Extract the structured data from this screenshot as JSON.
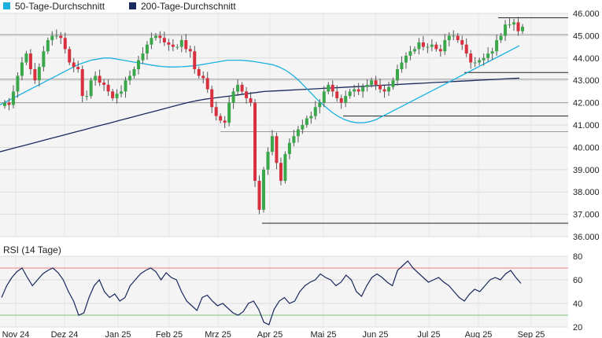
{
  "chart_data": [
    {
      "type": "candlestick",
      "legend": [
        {
          "name": "50-Tage-Durchschnitt",
          "color": "#1ab0e0"
        },
        {
          "name": "200-Tage-Durchschnitt",
          "color": "#1a2a5e"
        }
      ],
      "colors": {
        "up": "#3aa84a",
        "down": "#d9303f",
        "ma50": "#1ab0e0",
        "ma200": "#1a2a5e",
        "level_lines": "#222222",
        "background": "#f4f4f4"
      },
      "x_tick_labels": [
        "Nov 24",
        "Dez 24",
        "Jan 25",
        "Feb 25",
        "Mrz 25",
        "Apr 25",
        "Mai 25",
        "Jun 25",
        "Jul 25",
        "Aug 25",
        "Sep 25"
      ],
      "y_ticks": [
        "36.000",
        "37.000",
        "38.000",
        "39.000",
        "40.000",
        "41.000",
        "42.000",
        "43.000",
        "44.000",
        "45.000",
        "46.000"
      ],
      "ylim": [
        36000,
        46000
      ],
      "y_axis_position": "right",
      "grid": true,
      "close_series": [
        42000,
        41900,
        42500,
        43200,
        43800,
        44200,
        43500,
        43000,
        43600,
        44300,
        44800,
        45000,
        45000,
        44900,
        44400,
        43800,
        43600,
        43500,
        42300,
        42300,
        43000,
        43200,
        42900,
        42800,
        42500,
        42200,
        42400,
        42500,
        43000,
        43200,
        43500,
        43900,
        44200,
        44600,
        44900,
        45000,
        44900,
        44700,
        44600,
        44500,
        44500,
        44800,
        44400,
        44300,
        43500,
        43200,
        43100,
        42600,
        41800,
        41400,
        41200,
        41100,
        42000,
        42500,
        42800,
        42500,
        42200,
        42000,
        38500,
        37200,
        39000,
        39800,
        40500,
        39300,
        38500,
        39700,
        40200,
        40500,
        40800,
        41000,
        41300,
        41400,
        41800,
        42000,
        42500,
        42800,
        42500,
        42200,
        42000,
        42300,
        42500,
        42600,
        42500,
        42700,
        42800,
        43000,
        42800,
        42600,
        42500,
        42700,
        43000,
        43500,
        43800,
        44100,
        44300,
        44400,
        44700,
        44500,
        44500,
        44600,
        44400,
        44300,
        44800,
        45000,
        45000,
        44800,
        44600,
        44200,
        43800,
        43800,
        43900,
        44000,
        44200,
        44300,
        44800,
        45000,
        45500,
        45500,
        45600,
        45200,
        45400
      ],
      "ma50": [
        41900,
        42050,
        42200,
        42350,
        42500,
        42650,
        42800,
        42950,
        43100,
        43250,
        43400,
        43550,
        43700,
        43800,
        43900,
        43950,
        44000,
        44000,
        43950,
        43900,
        43850,
        43800,
        43750,
        43700,
        43650,
        43620,
        43600,
        43600,
        43610,
        43630,
        43660,
        43700,
        43750,
        43800,
        43850,
        43900,
        43900,
        43900,
        43880,
        43850,
        43800,
        43750,
        43700,
        43600,
        43450,
        43250,
        43000,
        42700,
        42400,
        42100,
        41850,
        41600,
        41400,
        41250,
        41150,
        41100,
        41100,
        41150,
        41250,
        41400,
        41550,
        41700,
        41850,
        42000,
        42150,
        42300,
        42450,
        42600,
        42750,
        42900,
        43050,
        43200,
        43350,
        43500,
        43650,
        43800,
        43950,
        44100,
        44250,
        44400,
        44550
      ],
      "ma200": [
        39800,
        39900,
        40000,
        40100,
        40200,
        40300,
        40400,
        40500,
        40600,
        40700,
        40800,
        40900,
        41000,
        41100,
        41200,
        41300,
        41400,
        41500,
        41600,
        41700,
        41800,
        41900,
        42000,
        42080,
        42150,
        42200,
        42250,
        42300,
        42350,
        42400,
        42450,
        42500,
        42520,
        42540,
        42560,
        42580,
        42600,
        42620,
        42640,
        42660,
        42680,
        42700,
        42720,
        42740,
        42760,
        42780,
        42800,
        42820,
        42840,
        42860,
        42880,
        42900,
        42920,
        42940,
        42960,
        42980,
        43000,
        43020,
        43040,
        43060,
        43080,
        43100
      ],
      "horizontal_levels": [
        45800,
        45050,
        43350,
        43050,
        42000,
        41400,
        40700,
        36600
      ]
    },
    {
      "type": "line",
      "title": "RSI (14 Tage)",
      "ylim": [
        20,
        80
      ],
      "y_ticks": [
        "20",
        "40",
        "60",
        "80"
      ],
      "y_axis_position": "right",
      "thresholds": [
        {
          "value": 70,
          "color": "#f08080"
        },
        {
          "value": 30,
          "color": "#7cc47c"
        }
      ],
      "x_tick_labels": [
        "Nov 24",
        "Dez 24",
        "Jan 25",
        "Feb 25",
        "Mrz 25",
        "Apr 25",
        "Mai 25",
        "Jun 25",
        "Jul 25",
        "Aug 25",
        "Sep 25"
      ],
      "values": [
        45,
        55,
        62,
        67,
        70,
        62,
        55,
        60,
        65,
        68,
        70,
        66,
        60,
        50,
        42,
        30,
        32,
        45,
        55,
        60,
        50,
        45,
        48,
        42,
        45,
        55,
        60,
        65,
        68,
        70,
        67,
        60,
        66,
        62,
        60,
        50,
        42,
        38,
        34,
        45,
        47,
        42,
        38,
        40,
        36,
        32,
        30,
        33,
        40,
        42,
        35,
        24,
        22,
        35,
        42,
        45,
        40,
        42,
        50,
        55,
        58,
        60,
        65,
        62,
        60,
        55,
        58,
        64,
        60,
        50,
        46,
        55,
        62,
        65,
        62,
        58,
        55,
        68,
        72,
        76,
        70,
        66,
        62,
        58,
        60,
        62,
        58,
        55,
        50,
        45,
        42,
        48,
        52,
        50,
        55,
        60,
        62,
        60,
        65,
        68,
        62,
        57
      ]
    }
  ]
}
